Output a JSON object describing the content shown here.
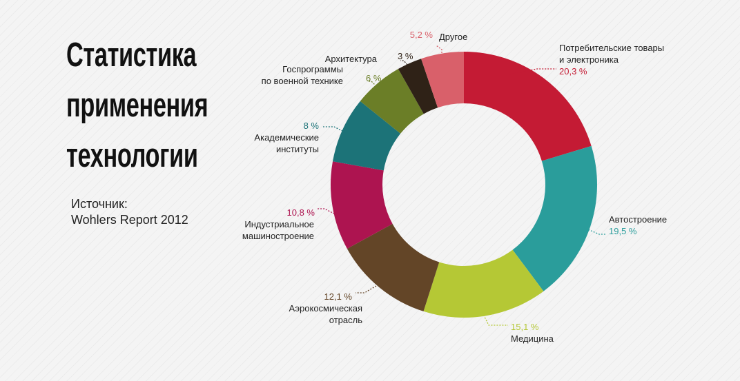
{
  "title_lines": [
    "Статистика",
    "применения",
    "технологии"
  ],
  "source": {
    "label": "Источник:",
    "value": "Wohlers Report 2012"
  },
  "chart_data": {
    "type": "pie",
    "variant": "donut",
    "slices": [
      {
        "label_lines": [
          "Потребительские товары",
          "и электроника"
        ],
        "value": 20.3,
        "value_label": "20,3 %",
        "color": "#c41b34"
      },
      {
        "label_lines": [
          "Автостроение"
        ],
        "value": 19.5,
        "value_label": "19,5 %",
        "color": "#2a9d9b"
      },
      {
        "label_lines": [
          "Медицина"
        ],
        "value": 15.1,
        "value_label": "15,1 %",
        "color": "#b5c835"
      },
      {
        "label_lines": [
          "Аэрокосмическая",
          "отрасль"
        ],
        "value": 12.1,
        "value_label": "12,1 %",
        "color": "#634527"
      },
      {
        "label_lines": [
          "Индустриальное",
          "машиностроение"
        ],
        "value": 10.8,
        "value_label": "10,8 %",
        "color": "#ad1450"
      },
      {
        "label_lines": [
          "Академические",
          "институты"
        ],
        "value": 8,
        "value_label": "8 %",
        "color": "#1c7378"
      },
      {
        "label_lines": [
          "Госпрограммы",
          "по военной технике"
        ],
        "value": 6,
        "value_label": "6 %",
        "color": "#6b7e27"
      },
      {
        "label_lines": [
          "Архитектура"
        ],
        "value": 3,
        "value_label": "3 %",
        "color": "#2f2217"
      },
      {
        "label_lines": [
          "Другое"
        ],
        "value": 5.2,
        "value_label": "5,2 %",
        "color": "#d9606a"
      }
    ]
  }
}
